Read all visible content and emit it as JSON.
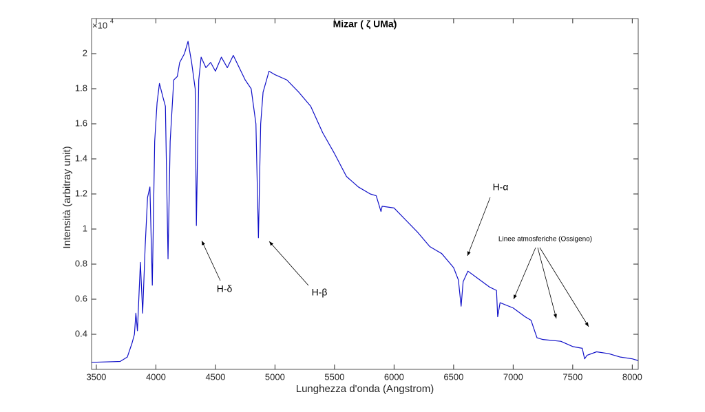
{
  "chart_data": {
    "type": "line",
    "title": "Mizar ( ζ UMa)",
    "x_label": "Lunghezza d'onda (Angstrom)",
    "y_label": "Intensità (arbitray unit)",
    "y_multiplier": "×10",
    "y_multiplier_exponent": "4",
    "xlim": [
      3460,
      8050
    ],
    "ylim": [
      0.2,
      2.2
    ],
    "xticks": [
      3500,
      4000,
      4500,
      5000,
      5500,
      6000,
      6500,
      7000,
      7500,
      8000
    ],
    "yticks": [
      0.4,
      0.6,
      0.8,
      1,
      1.2,
      1.4,
      1.6,
      1.8,
      2
    ],
    "grid": false,
    "annotations": [
      "H-δ",
      "H-β",
      "H-α",
      "Linee atmosferiche (Ossigeno)"
    ],
    "x": [
      3460,
      3700,
      3760,
      3800,
      3820,
      3832,
      3845,
      3870,
      3889,
      3910,
      3930,
      3950,
      3970,
      3990,
      4010,
      4030,
      4060,
      4080,
      4102,
      4120,
      4150,
      4180,
      4200,
      4240,
      4270,
      4300,
      4330,
      4340,
      4360,
      4380,
      4420,
      4460,
      4500,
      4550,
      4600,
      4650,
      4700,
      4750,
      4800,
      4840,
      4861,
      4880,
      4900,
      4950,
      5000,
      5100,
      5200,
      5300,
      5400,
      5500,
      5600,
      5700,
      5800,
      5850,
      5890,
      5900,
      6000,
      6100,
      6200,
      6300,
      6400,
      6500,
      6540,
      6563,
      6580,
      6620,
      6700,
      6800,
      6860,
      6870,
      6890,
      7000,
      7100,
      7150,
      7180,
      7200,
      7250,
      7400,
      7500,
      7580,
      7600,
      7620,
      7700,
      7800,
      7900,
      8000,
      8050
    ],
    "series": [
      {
        "color": "#1010c8",
        "values": [
          0.24,
          0.245,
          0.27,
          0.35,
          0.4,
          0.52,
          0.42,
          0.81,
          0.52,
          0.9,
          1.18,
          1.24,
          0.68,
          1.5,
          1.72,
          1.83,
          1.75,
          1.7,
          0.83,
          1.5,
          1.85,
          1.87,
          1.95,
          2.0,
          2.07,
          1.95,
          1.8,
          1.02,
          1.85,
          1.98,
          1.92,
          1.95,
          1.9,
          1.98,
          1.92,
          1.99,
          1.92,
          1.85,
          1.8,
          1.6,
          0.95,
          1.6,
          1.78,
          1.9,
          1.88,
          1.85,
          1.78,
          1.7,
          1.55,
          1.43,
          1.3,
          1.24,
          1.2,
          1.19,
          1.1,
          1.13,
          1.12,
          1.05,
          0.98,
          0.9,
          0.86,
          0.78,
          0.71,
          0.56,
          0.7,
          0.76,
          0.72,
          0.67,
          0.65,
          0.5,
          0.58,
          0.55,
          0.5,
          0.48,
          0.42,
          0.38,
          0.37,
          0.36,
          0.33,
          0.32,
          0.26,
          0.28,
          0.3,
          0.29,
          0.27,
          0.26,
          0.25
        ]
      }
    ]
  }
}
